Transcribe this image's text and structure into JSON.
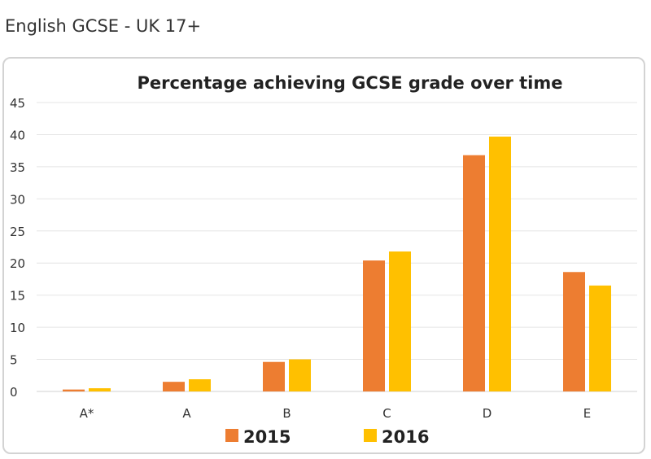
{
  "page_title": "English GCSE - UK 17+",
  "chart_data": {
    "type": "bar",
    "title": "Percentage achieving GCSE grade over time",
    "categories": [
      "A*",
      "A",
      "B",
      "C",
      "D",
      "E"
    ],
    "series": [
      {
        "name": "2015",
        "color": "#ED7D31",
        "values": [
          0.3,
          1.5,
          4.6,
          20.4,
          36.8,
          18.6
        ]
      },
      {
        "name": "2016",
        "color": "#FFC000",
        "values": [
          0.5,
          1.9,
          5.0,
          21.8,
          39.7,
          16.5
        ]
      }
    ],
    "ylim": [
      0,
      45
    ],
    "yticks": [
      "0",
      "5",
      "10",
      "15",
      "20",
      "25",
      "30",
      "35",
      "40",
      "45"
    ],
    "grid": true,
    "legend": "bottom"
  }
}
